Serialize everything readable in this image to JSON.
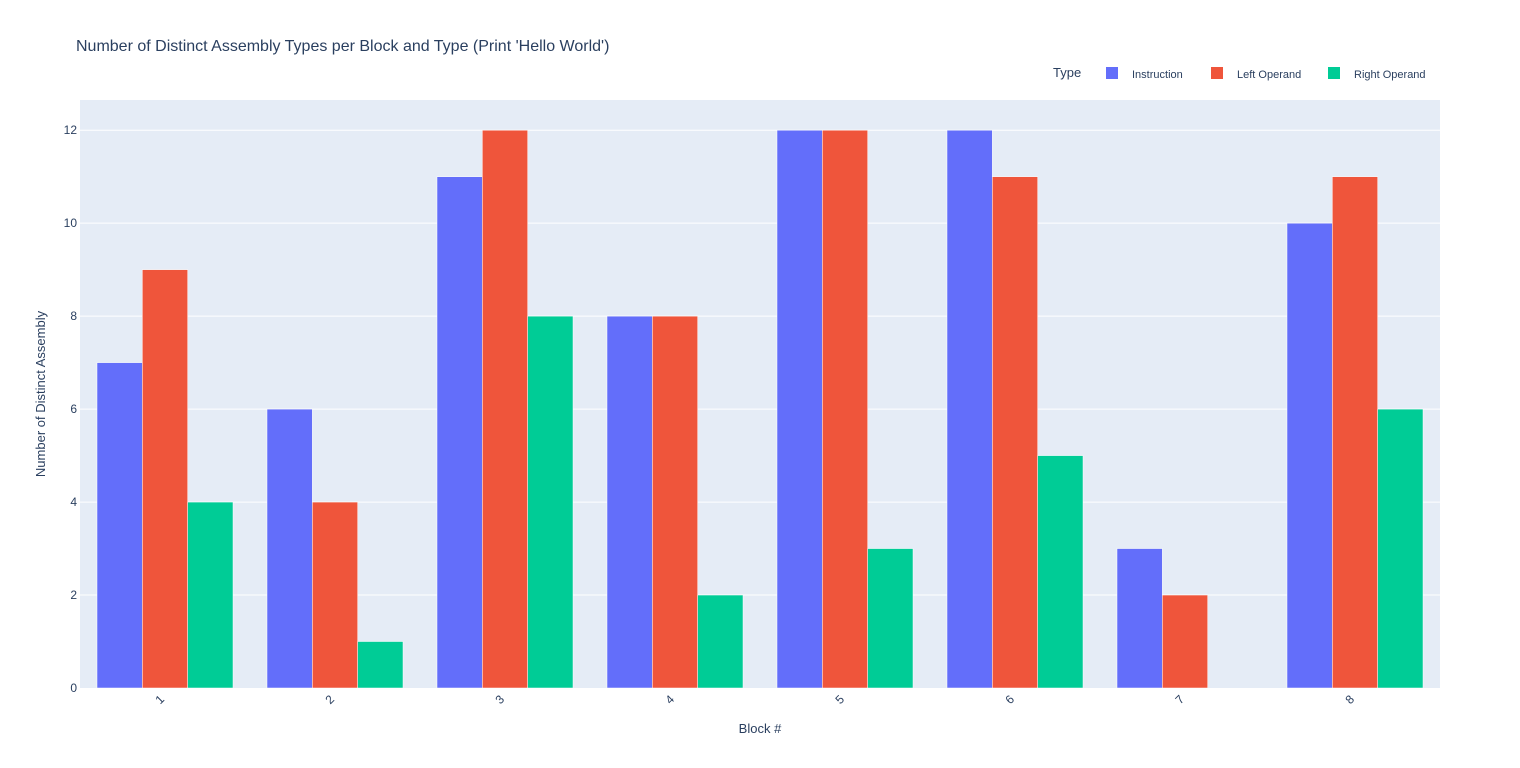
{
  "chart_data": {
    "type": "bar",
    "title": "Number of Distinct Assembly Types per Block and Type (Print 'Hello World')",
    "xlabel": "Block #",
    "ylabel": "Number of Distinct Assembly",
    "categories": [
      "1",
      "2",
      "3",
      "4",
      "5",
      "6",
      "7",
      "8"
    ],
    "series": [
      {
        "name": "Instruction",
        "values": [
          7,
          6,
          11,
          8,
          12,
          12,
          3,
          10
        ],
        "color": "#636efa"
      },
      {
        "name": "Left Operand",
        "values": [
          9,
          4,
          12,
          8,
          12,
          11,
          2,
          11
        ],
        "color": "#ef553b"
      },
      {
        "name": "Right Operand",
        "values": [
          4,
          1,
          8,
          2,
          3,
          5,
          0,
          6
        ],
        "color": "#00cc96"
      }
    ],
    "ylim": [
      0,
      12.65
    ],
    "yticks": [
      0,
      2,
      4,
      6,
      8,
      10,
      12
    ],
    "legend": {
      "title": "Type",
      "placement": "top-right",
      "orientation": "horizontal"
    },
    "grid": true,
    "plot_background": "#e5ecf6",
    "xtick_rotation": -45
  }
}
